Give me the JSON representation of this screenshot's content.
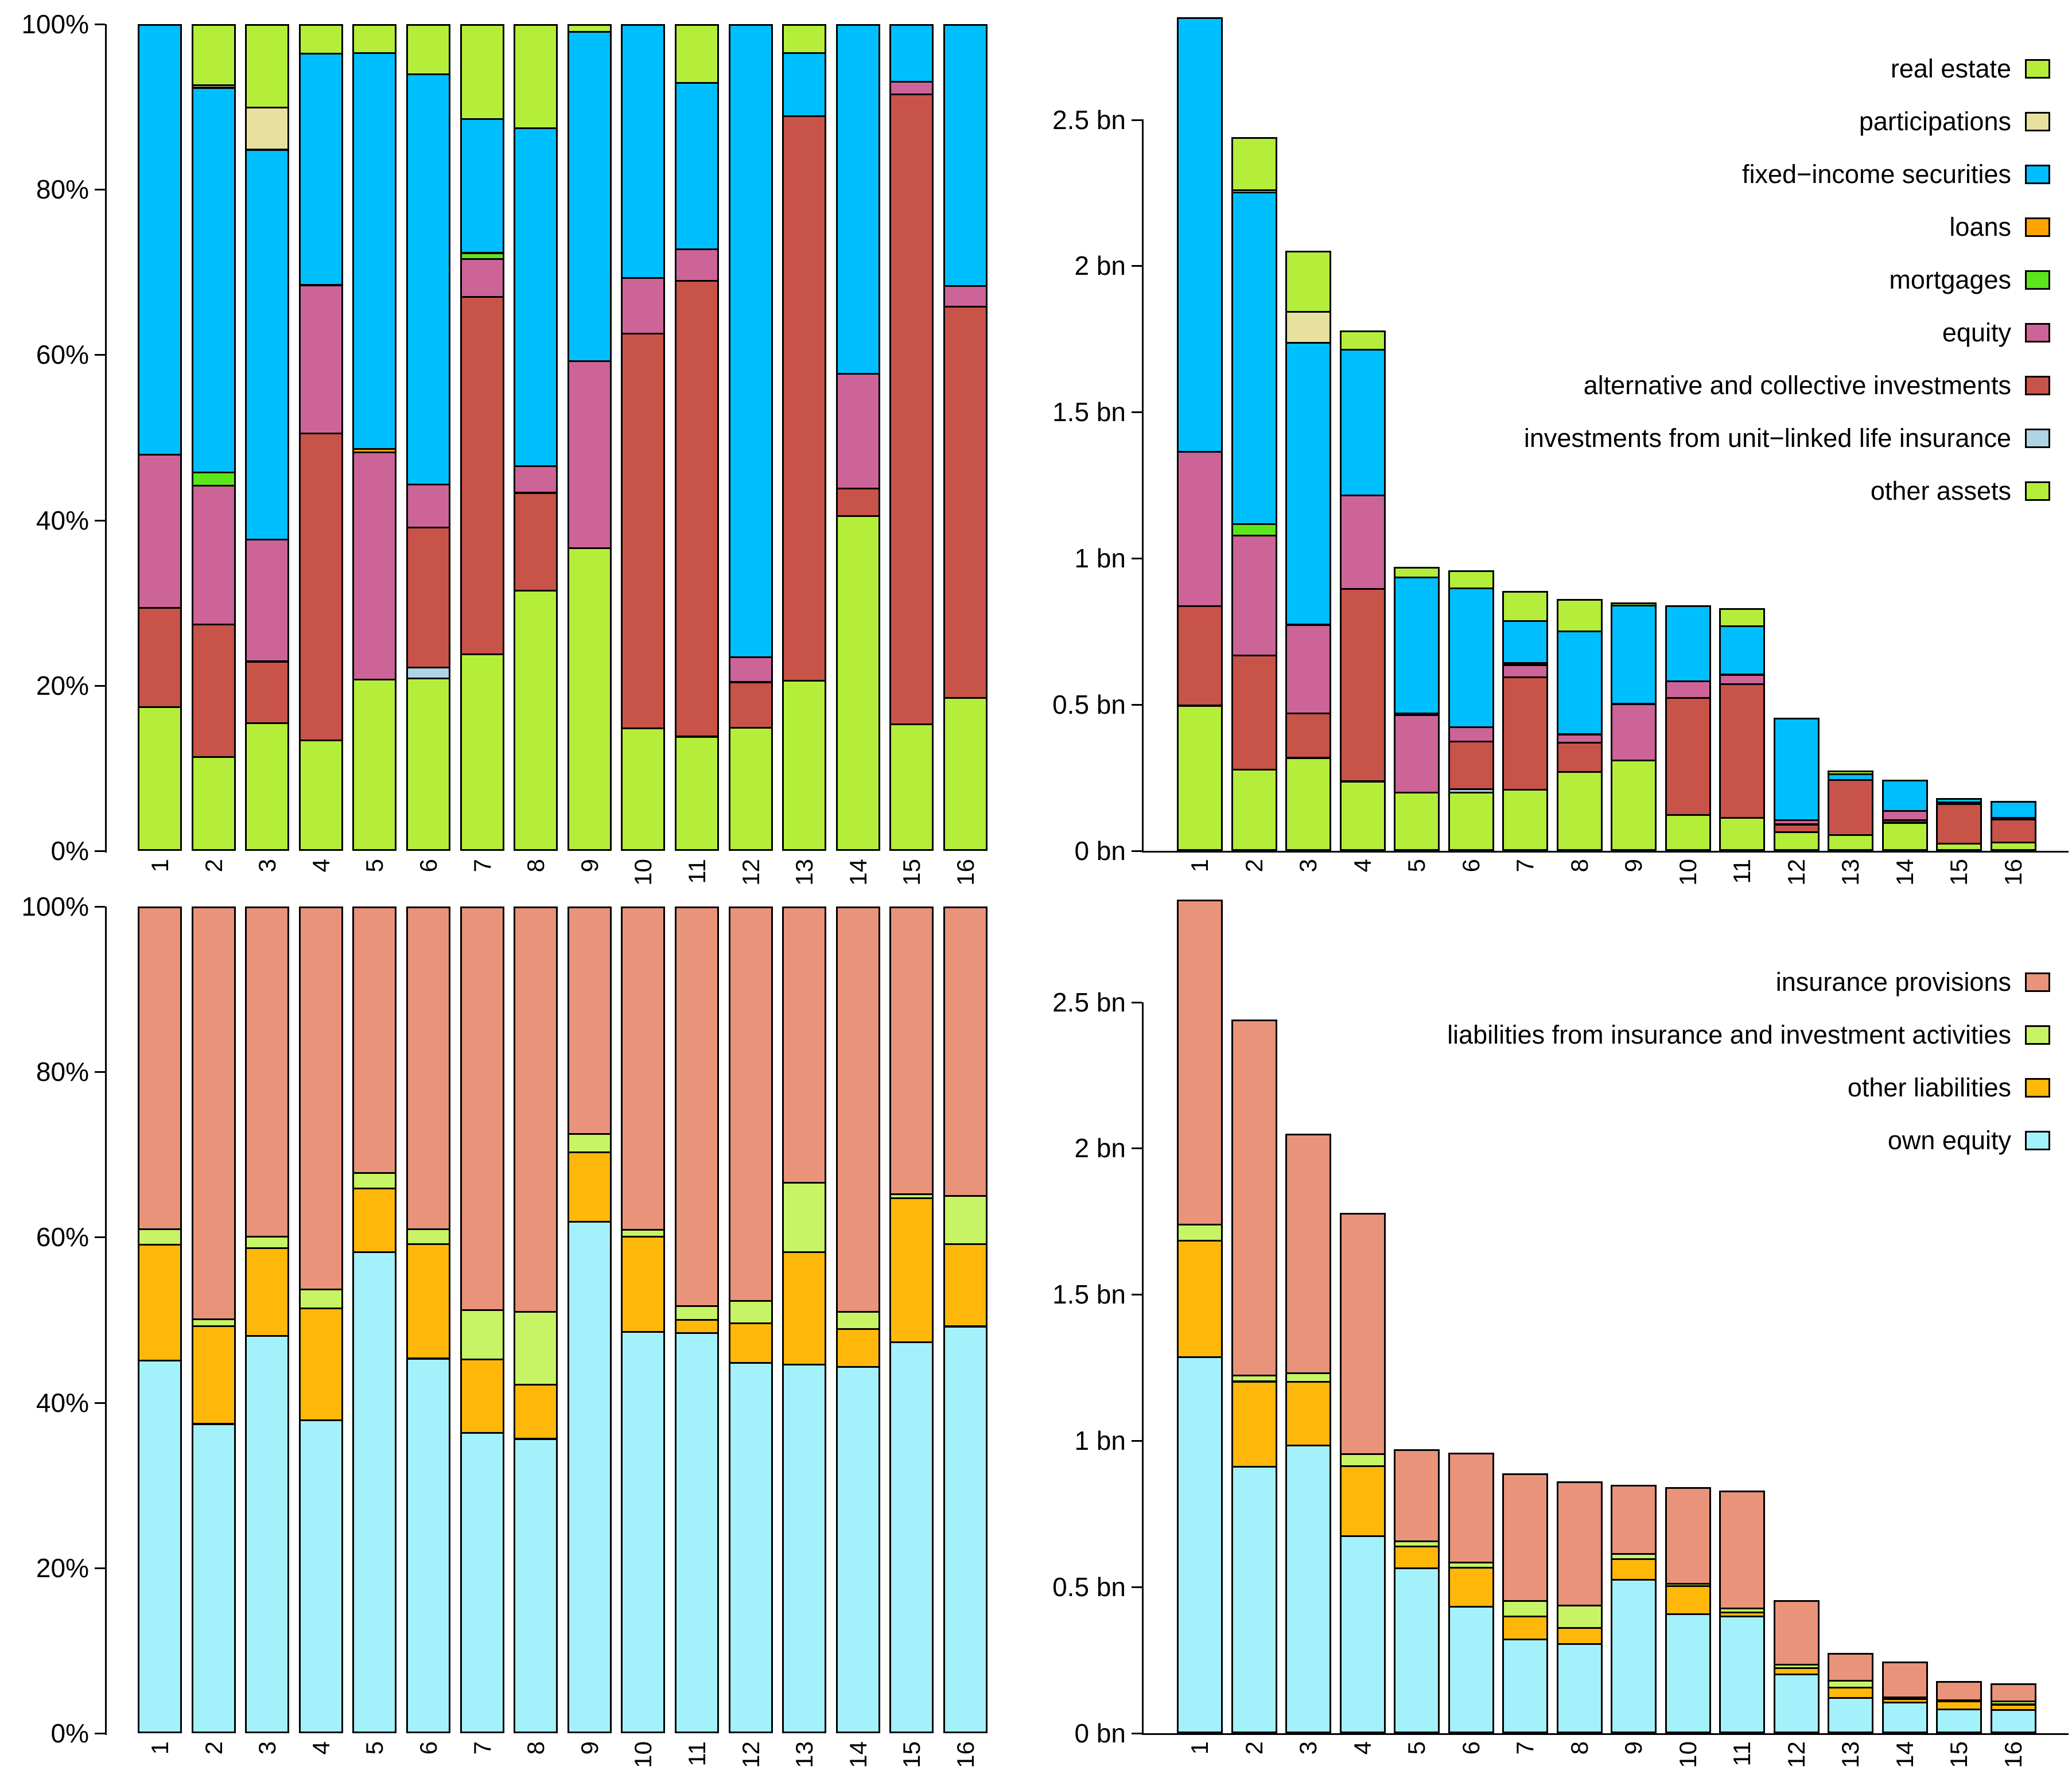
{
  "figure": {
    "background": "#FFFFFF",
    "companies": [
      "1",
      "2",
      "3",
      "4",
      "5",
      "6",
      "7",
      "8",
      "9",
      "10",
      "11",
      "12",
      "13",
      "14",
      "15",
      "16"
    ],
    "balance_totals_bn": [
      2.85,
      2.44,
      2.05,
      1.78,
      0.97,
      0.96,
      0.89,
      0.86,
      0.85,
      0.84,
      0.83,
      0.455,
      0.275,
      0.245,
      0.18,
      0.17
    ]
  },
  "colors": {
    "real_estate": "#B4EE3A",
    "participations": "#E8E09F",
    "fixed_income_securities": "#00BFFF",
    "loans": "#FFA303",
    "mortgages": "#5BE61C",
    "equity": "#CC6497",
    "alternative_collective": "#C85349",
    "unit_linked": "#ADD5E6",
    "other_assets": "#B4EE3A",
    "insurance_provisions": "#E9937B",
    "liabilities_ins_inv": "#C6F464",
    "other_liabilities": "#FFB80A",
    "own_equity": "#A3F1FB"
  },
  "legend_assets": {
    "entries": [
      {
        "label": "real estate",
        "color_key": "real_estate"
      },
      {
        "label": "participations",
        "color_key": "participations"
      },
      {
        "label": "fixed−income securities",
        "color_key": "fixed_income_securities"
      },
      {
        "label": "loans",
        "color_key": "loans"
      },
      {
        "label": "mortgages",
        "color_key": "mortgages"
      },
      {
        "label": "equity",
        "color_key": "equity"
      },
      {
        "label": "alternative and collective investments",
        "color_key": "alternative_collective"
      },
      {
        "label": "investments from unit−linked life insurance",
        "color_key": "unit_linked"
      },
      {
        "label": "other assets",
        "color_key": "other_assets"
      }
    ]
  },
  "legend_liabilities": {
    "entries": [
      {
        "label": "insurance provisions",
        "color_key": "insurance_provisions"
      },
      {
        "label": "liabilities from insurance and investment activities",
        "color_key": "liabilities_ins_inv"
      },
      {
        "label": "other liabilities",
        "color_key": "other_liabilities"
      },
      {
        "label": "own equity",
        "color_key": "own_equity"
      }
    ]
  },
  "chart_data": [
    {
      "id": "assets_percent",
      "type": "bar",
      "stacked": true,
      "position": "top-left",
      "unit": "percent",
      "ylim": [
        0,
        100
      ],
      "grid": false,
      "y_ticks": [
        0,
        20,
        40,
        60,
        80,
        100
      ],
      "y_tick_labels": [
        "0%",
        "20%",
        "40%",
        "60%",
        "80%",
        "100%"
      ],
      "categories": [
        "1",
        "2",
        "3",
        "4",
        "5",
        "6",
        "7",
        "8",
        "9",
        "10",
        "11",
        "12",
        "13",
        "14",
        "15",
        "16"
      ],
      "series": [
        {
          "name": "other assets",
          "color_key": "other_assets",
          "values": [
            17.5,
            11.5,
            15.6,
            13.5,
            20.8,
            21.0,
            23.9,
            31.6,
            36.7,
            14.9,
            13.9,
            15.0,
            20.7,
            40.6,
            15.4,
            18.6
          ]
        },
        {
          "name": "investments from unit-linked life insurance",
          "color_key": "unit_linked",
          "values": [
            0,
            0,
            0,
            0,
            0,
            1.3,
            0,
            0,
            0,
            0,
            0,
            0,
            0,
            0,
            0,
            0
          ]
        },
        {
          "name": "alternative and collective investments",
          "color_key": "alternative_collective",
          "values": [
            12.0,
            16.0,
            7.4,
            37.1,
            0,
            16.9,
            43.2,
            11.8,
            0,
            47.8,
            55.2,
            5.5,
            68.3,
            3.3,
            76.2,
            47.3
          ]
        },
        {
          "name": "equity",
          "color_key": "equity",
          "values": [
            18.5,
            16.8,
            14.8,
            17.9,
            27.5,
            5.2,
            4.6,
            3.2,
            22.7,
            6.7,
            3.8,
            3.0,
            0,
            13.9,
            1.5,
            2.5
          ]
        },
        {
          "name": "mortgages",
          "color_key": "mortgages",
          "values": [
            0,
            1.6,
            0,
            0,
            0,
            0,
            0.7,
            0,
            0,
            0,
            0,
            0,
            0,
            0,
            0,
            0
          ]
        },
        {
          "name": "loans",
          "color_key": "loans",
          "values": [
            0,
            0,
            0,
            0,
            0.4,
            0,
            0,
            0,
            0,
            0,
            0,
            0,
            0,
            0,
            0,
            0
          ]
        },
        {
          "name": "fixed-income securities",
          "color_key": "fixed_income_securities",
          "values": [
            52.0,
            46.5,
            47.1,
            28.0,
            47.9,
            49.6,
            16.2,
            40.9,
            39.8,
            30.6,
            20.1,
            76.5,
            7.6,
            42.2,
            6.9,
            31.6
          ]
        },
        {
          "name": "participations",
          "color_key": "participations",
          "values": [
            0,
            0.3,
            5.1,
            0,
            0,
            0,
            0,
            0,
            0,
            0,
            0,
            0,
            0,
            0,
            0,
            0
          ]
        },
        {
          "name": "real estate",
          "color_key": "real_estate",
          "values": [
            0,
            7.3,
            10.0,
            3.5,
            3.4,
            6.0,
            11.4,
            12.5,
            0.8,
            0,
            7.0,
            0,
            3.4,
            0,
            0,
            0
          ]
        }
      ]
    },
    {
      "id": "assets_absolute",
      "type": "bar",
      "stacked": true,
      "position": "top-right",
      "unit": "bn",
      "ylim": [
        0,
        2.85
      ],
      "grid": false,
      "y_ticks": [
        0,
        0.5,
        1.0,
        1.5,
        2.0,
        2.5
      ],
      "y_tick_labels": [
        "0 bn",
        "0.5 bn",
        "1 bn",
        "1.5 bn",
        "2 bn",
        "2.5 bn"
      ],
      "categories": [
        "1",
        "2",
        "3",
        "4",
        "5",
        "6",
        "7",
        "8",
        "9",
        "10",
        "11",
        "12",
        "13",
        "14",
        "15",
        "16"
      ],
      "series": [
        {
          "name": "other assets",
          "color_key": "other_assets",
          "values": [
            0.499,
            0.281,
            0.32,
            0.24,
            0.202,
            0.202,
            0.213,
            0.272,
            0.312,
            0.125,
            0.115,
            0.068,
            0.057,
            0.099,
            0.028,
            0.032
          ]
        },
        {
          "name": "investments from unit-linked life insurance",
          "color_key": "unit_linked",
          "values": [
            0,
            0,
            0,
            0,
            0,
            0.012,
            0,
            0,
            0,
            0,
            0,
            0,
            0,
            0,
            0,
            0
          ]
        },
        {
          "name": "alternative and collective investments",
          "color_key": "alternative_collective",
          "values": [
            0.342,
            0.39,
            0.152,
            0.66,
            0,
            0.162,
            0.384,
            0.101,
            0,
            0.402,
            0.458,
            0.025,
            0.188,
            0.008,
            0.137,
            0.08
          ]
        },
        {
          "name": "equity",
          "color_key": "equity",
          "values": [
            0.527,
            0.41,
            0.303,
            0.319,
            0.267,
            0.05,
            0.041,
            0.028,
            0.193,
            0.056,
            0.032,
            0.014,
            0,
            0.034,
            0.003,
            0.004
          ]
        },
        {
          "name": "mortgages",
          "color_key": "mortgages",
          "values": [
            0,
            0.039,
            0,
            0,
            0,
            0,
            0.006,
            0,
            0,
            0,
            0,
            0,
            0,
            0,
            0,
            0
          ]
        },
        {
          "name": "loans",
          "color_key": "loans",
          "values": [
            0,
            0,
            0,
            0,
            0.004,
            0,
            0,
            0,
            0,
            0,
            0,
            0,
            0,
            0,
            0,
            0
          ]
        },
        {
          "name": "fixed-income securities",
          "color_key": "fixed_income_securities",
          "values": [
            1.482,
            1.135,
            0.966,
            0.498,
            0.465,
            0.476,
            0.144,
            0.352,
            0.338,
            0.257,
            0.167,
            0.348,
            0.021,
            0.103,
            0.012,
            0.054
          ]
        },
        {
          "name": "participations",
          "color_key": "participations",
          "values": [
            0,
            0.007,
            0.105,
            0,
            0,
            0,
            0,
            0,
            0,
            0,
            0,
            0,
            0,
            0,
            0,
            0
          ]
        },
        {
          "name": "real estate",
          "color_key": "real_estate",
          "values": [
            0,
            0.178,
            0.205,
            0.062,
            0.033,
            0.058,
            0.101,
            0.108,
            0.007,
            0,
            0.058,
            0,
            0.009,
            0,
            0,
            0
          ]
        }
      ]
    },
    {
      "id": "liabilities_percent",
      "type": "bar",
      "stacked": true,
      "position": "bottom-left",
      "unit": "percent",
      "ylim": [
        0,
        100
      ],
      "grid": false,
      "y_ticks": [
        0,
        20,
        40,
        60,
        80,
        100
      ],
      "y_tick_labels": [
        "0%",
        "20%",
        "40%",
        "60%",
        "80%",
        "100%"
      ],
      "categories": [
        "1",
        "2",
        "3",
        "4",
        "5",
        "6",
        "7",
        "8",
        "9",
        "10",
        "11",
        "12",
        "13",
        "14",
        "15",
        "16"
      ],
      "series": [
        {
          "name": "own equity",
          "color_key": "own_equity",
          "values": [
            45.2,
            37.5,
            48.2,
            38.0,
            58.3,
            45.4,
            36.4,
            35.7,
            62.0,
            48.7,
            48.5,
            44.9,
            44.7,
            44.4,
            47.4,
            49.3
          ]
        },
        {
          "name": "other liabilities",
          "color_key": "other_liabilities",
          "values": [
            14.0,
            11.9,
            10.6,
            13.5,
            7.7,
            13.9,
            8.9,
            6.6,
            8.4,
            11.5,
            1.6,
            4.8,
            13.6,
            4.6,
            17.4,
            10.0
          ]
        },
        {
          "name": "liabilities from insurance and investment activities",
          "color_key": "liabilities_ins_inv",
          "values": [
            1.9,
            0.8,
            1.4,
            2.3,
            1.9,
            1.8,
            6.0,
            8.8,
            2.2,
            0.8,
            1.7,
            2.7,
            8.4,
            2.1,
            0.5,
            5.8
          ]
        },
        {
          "name": "insurance provisions",
          "color_key": "insurance_provisions",
          "values": [
            38.9,
            49.8,
            39.8,
            46.2,
            32.1,
            38.9,
            48.7,
            48.9,
            27.4,
            39.0,
            48.2,
            47.6,
            33.3,
            48.9,
            34.7,
            34.9
          ]
        }
      ]
    },
    {
      "id": "liabilities_absolute",
      "type": "bar",
      "stacked": true,
      "position": "bottom-right",
      "unit": "bn",
      "ylim": [
        0,
        2.85
      ],
      "grid": false,
      "y_ticks": [
        0,
        0.5,
        1.0,
        1.5,
        2.0,
        2.5
      ],
      "y_tick_labels": [
        "0 bn",
        "0.5 bn",
        "1 bn",
        "1.5 bn",
        "2 bn",
        "2.5 bn"
      ],
      "categories": [
        "1",
        "2",
        "3",
        "4",
        "5",
        "6",
        "7",
        "8",
        "9",
        "10",
        "11",
        "12",
        "13",
        "14",
        "15",
        "16"
      ],
      "series": [
        {
          "name": "own equity",
          "color_key": "own_equity",
          "values": [
            1.288,
            0.915,
            0.988,
            0.676,
            0.566,
            0.436,
            0.324,
            0.307,
            0.527,
            0.409,
            0.403,
            0.204,
            0.123,
            0.109,
            0.085,
            0.084
          ]
        },
        {
          "name": "other liabilities",
          "color_key": "other_liabilities",
          "values": [
            0.399,
            0.29,
            0.217,
            0.24,
            0.075,
            0.133,
            0.079,
            0.057,
            0.071,
            0.097,
            0.013,
            0.022,
            0.037,
            0.011,
            0.031,
            0.017
          ]
        },
        {
          "name": "liabilities from insurance and investment activities",
          "color_key": "liabilities_ins_inv",
          "values": [
            0.054,
            0.02,
            0.029,
            0.041,
            0.018,
            0.017,
            0.053,
            0.076,
            0.019,
            0.007,
            0.014,
            0.012,
            0.023,
            0.005,
            0.001,
            0.01
          ]
        },
        {
          "name": "insurance provisions",
          "color_key": "insurance_provisions",
          "values": [
            1.109,
            1.215,
            0.816,
            0.822,
            0.311,
            0.373,
            0.433,
            0.421,
            0.233,
            0.328,
            0.4,
            0.217,
            0.092,
            0.12,
            0.062,
            0.059
          ]
        }
      ]
    }
  ]
}
